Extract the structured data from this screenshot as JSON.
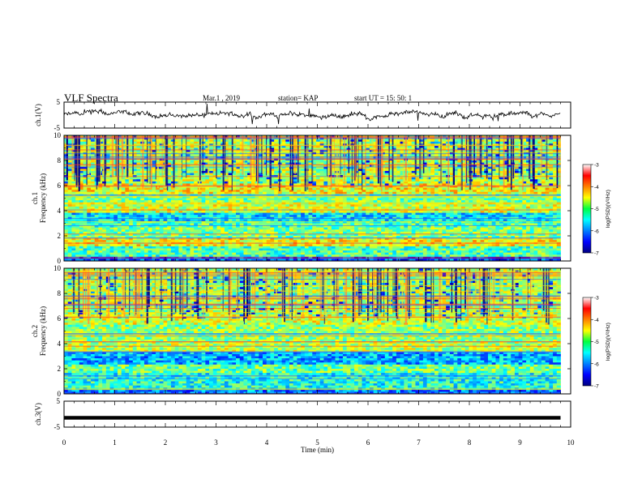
{
  "header": {
    "title": "VLF Spectra",
    "date": "Mar.1  , 2019",
    "station": "station= KAP",
    "start_ut": "start  UT  =   15: 50: 1"
  },
  "chart_data": [
    {
      "type": "line",
      "name": "ch1-waveform",
      "ylabel": "ch.1(V)",
      "ylim": [
        -5,
        5
      ],
      "yticks": [
        "5",
        "-5"
      ],
      "xlim": [
        0,
        10
      ]
    },
    {
      "type": "heatmap",
      "name": "ch1-spectrogram",
      "ylabel_line1": "ch.1",
      "ylabel_line2": "Frequency  (kHz)",
      "ylim": [
        0,
        10
      ],
      "yticks": [
        "0",
        "2",
        "4",
        "6",
        "8",
        "10"
      ],
      "xlim": [
        0,
        9.8
      ],
      "colorbar": {
        "label": "log(PSD)(V²/Hz)",
        "range": [
          -7,
          -3
        ],
        "ticks": [
          "-3",
          "-4",
          "-5",
          "-6",
          "-7"
        ],
        "colormap": "jet"
      }
    },
    {
      "type": "heatmap",
      "name": "ch2-spectrogram",
      "ylabel_line1": "ch.2",
      "ylabel_line2": "Frequency  (kHz)",
      "ylim": [
        0,
        10
      ],
      "yticks": [
        "0",
        "2",
        "4",
        "6",
        "8",
        "10"
      ],
      "xlim": [
        0,
        9.8
      ],
      "colorbar": {
        "label": "log(PSD)(V²/Hz)",
        "range": [
          -7,
          -3
        ],
        "ticks": [
          "-3",
          "-4",
          "-5",
          "-6",
          "-7"
        ],
        "colormap": "jet"
      }
    },
    {
      "type": "line",
      "name": "ch3-waveform",
      "ylabel": "ch.3(V)",
      "ylim": [
        -5,
        5
      ],
      "yticks": [
        "5",
        "-5"
      ],
      "constant_value": -1.4,
      "xlim": [
        0,
        10
      ],
      "xlabel": "Time  (min)",
      "xticks": [
        "0",
        "1",
        "2",
        "3",
        "4",
        "5",
        "6",
        "7",
        "8",
        "9",
        "10"
      ]
    }
  ]
}
